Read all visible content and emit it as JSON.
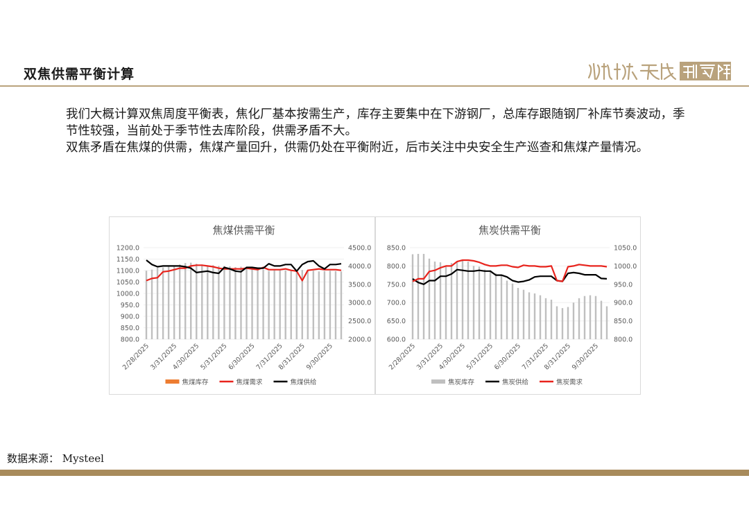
{
  "header": {
    "title": "双焦供需平衡计算",
    "logo_text": "淵海天成研究院"
  },
  "body": {
    "paragraph1": "我们大概计算双焦周度平衡表，焦化厂基本按需生产，库存主要集中在下游钢厂，总库存跟随钢厂补库节奏波动，季节性较强，当前处于季节性去库阶段，供需矛盾不大。",
    "paragraph2": "双焦矛盾在焦煤的供需，焦煤产量回升，供需仍处在平衡附近，后市关注中央安全生产巡查和焦煤产量情况。"
  },
  "footer": {
    "source": "数据来源：  Mysteel"
  },
  "colors": {
    "accent": "#a88b5b",
    "red": "#e8231c",
    "black": "#000000",
    "grey": "#bfbfbf",
    "orange": "#ed7d31"
  },
  "chart_data": [
    {
      "type": "bar+line",
      "title": "焦煤供需平衡",
      "x_tick_labels": [
        "2/28/2025",
        "3/31/2025",
        "4/30/2025",
        "5/31/2025",
        "6/30/2025",
        "7/31/2025",
        "8/31/2025",
        "9/30/2025"
      ],
      "y_left": {
        "min": 800,
        "max": 1200,
        "step": 50,
        "ticks": [
          "800.0",
          "850.0",
          "900.0",
          "950.0",
          "1000.0",
          "1050.0",
          "1100.0",
          "1150.0",
          "1200.0"
        ]
      },
      "y_right": {
        "min": 2000,
        "max": 4500,
        "step": 500,
        "ticks": [
          "2000.0",
          "2500.0",
          "3000.0",
          "3500.0",
          "4000.0",
          "4500.0"
        ]
      },
      "series": [
        {
          "name": "焦煤库存",
          "type": "bar",
          "axis": "right",
          "color": "#bfbfbf",
          "legend_color": "#ed7d31",
          "values": [
            3870,
            3900,
            3950,
            3960,
            3980,
            4000,
            4040,
            4080,
            4090,
            4060,
            4040,
            4010,
            4020,
            4000,
            4000,
            3990,
            3970,
            3980,
            3960,
            3940,
            3920,
            3900,
            3860,
            3900,
            3890,
            3880,
            3860,
            3900,
            3890,
            3880,
            3870,
            3850,
            3860,
            3870,
            3860,
            3850
          ]
        },
        {
          "name": "焦煤需求",
          "type": "line",
          "axis": "right",
          "color": "#e8231c",
          "values": [
            3600,
            3660,
            3680,
            3840,
            3860,
            3900,
            3940,
            3940,
            4000,
            4020,
            4020,
            4000,
            3980,
            3940,
            3920,
            3920,
            3920,
            3920,
            3940,
            3920,
            3900,
            3960,
            3900,
            3900,
            3900,
            3920,
            3880,
            3860,
            3600,
            3880,
            3900,
            3920,
            3900,
            3900,
            3900,
            3880
          ]
        },
        {
          "name": "焦煤供给",
          "type": "line",
          "axis": "right",
          "color": "#000000",
          "values": [
            4160,
            4040,
            3980,
            4000,
            4000,
            4000,
            4000,
            3980,
            3940,
            3820,
            3840,
            3860,
            3820,
            3800,
            3960,
            3920,
            3860,
            3840,
            3960,
            3960,
            3940,
            3940,
            4060,
            4000,
            4000,
            4040,
            4040,
            3860,
            4040,
            4120,
            4140,
            4000,
            3920,
            4040,
            4040,
            4060
          ]
        }
      ],
      "legend_position": "bottom"
    },
    {
      "type": "bar+line",
      "title": "焦炭供需平衡",
      "x_tick_labels": [
        "2/28/2025",
        "3/31/2025",
        "4/30/2025",
        "5/31/2025",
        "6/30/2025",
        "7/31/2025",
        "8/31/2025",
        "9/30/2025"
      ],
      "y_left": {
        "min": 600,
        "max": 850,
        "step": 50,
        "ticks": [
          "600.0",
          "650.0",
          "700.0",
          "750.0",
          "800.0",
          "850.0"
        ]
      },
      "y_right": {
        "min": 800,
        "max": 1050,
        "step": 50,
        "ticks": [
          "800.0",
          "850.0",
          "900.0",
          "950.0",
          "1000.0",
          "1050.0"
        ]
      },
      "series": [
        {
          "name": "焦炭库存",
          "type": "bar",
          "axis": "left",
          "color": "#bfbfbf",
          "values": [
            832,
            833,
            833,
            820,
            812,
            810,
            800,
            808,
            812,
            815,
            812,
            800,
            798,
            790,
            788,
            780,
            775,
            760,
            752,
            740,
            735,
            728,
            725,
            720,
            712,
            708,
            690,
            685,
            688,
            700,
            712,
            718,
            720,
            718,
            705,
            690
          ]
        },
        {
          "name": "焦炭供给",
          "type": "line",
          "axis": "right",
          "color": "#000000",
          "values": [
            965,
            955,
            950,
            960,
            960,
            972,
            972,
            978,
            990,
            988,
            986,
            986,
            988,
            986,
            986,
            975,
            975,
            970,
            960,
            956,
            958,
            962,
            970,
            972,
            972,
            972,
            960,
            958,
            980,
            982,
            980,
            976,
            976,
            976,
            966,
            965
          ]
        },
        {
          "name": "焦炭需求",
          "type": "line",
          "axis": "right",
          "color": "#e8231c",
          "values": [
            958,
            965,
            965,
            985,
            988,
            995,
            1000,
            1000,
            1012,
            1016,
            1016,
            1014,
            1010,
            1004,
            1000,
            1000,
            1002,
            1002,
            998,
            996,
            1002,
            1000,
            1000,
            998,
            998,
            1000,
            960,
            958,
            998,
            1000,
            1004,
            1002,
            1000,
            1000,
            1000,
            998
          ]
        }
      ],
      "legend_position": "bottom"
    }
  ]
}
